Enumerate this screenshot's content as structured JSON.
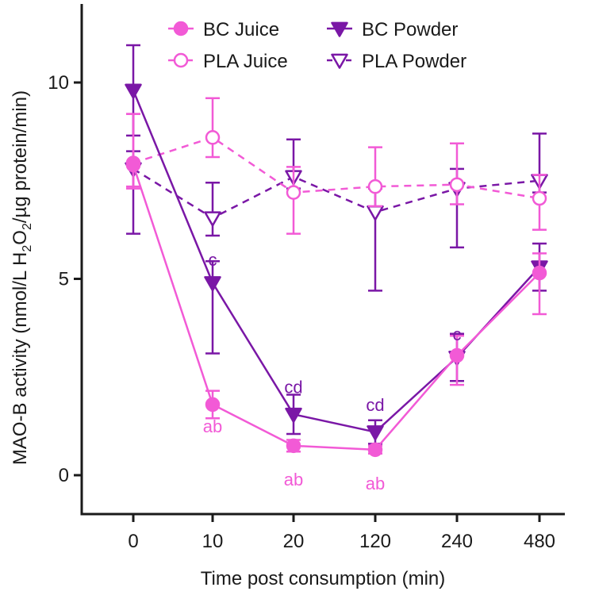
{
  "chart_data": {
    "type": "line",
    "title": "",
    "xlabel": "Time post consumption (min)",
    "ylabel_parts": {
      "pre": "MAO-B activity (nmol/L H",
      "sub": "2",
      "mid": "O",
      "sub2": "2",
      "post": "/µg protein/min)"
    },
    "categories": [
      "0",
      "10",
      "20",
      "120",
      "240",
      "480"
    ],
    "ylim": [
      -1,
      12
    ],
    "yticks": [
      0,
      5,
      10
    ],
    "ytick_labels": [
      "0",
      "5",
      "10"
    ],
    "series": [
      {
        "name": "BC Juice",
        "color": "#f25ad6",
        "dashed": false,
        "marker": "circle-filled",
        "values": [
          7.9,
          1.8,
          0.75,
          0.65,
          3.05,
          5.15
        ],
        "err_up": [
          1.3,
          0.35,
          0.15,
          0.1,
          0.5,
          0.5
        ],
        "err_down": [
          0.6,
          0.35,
          0.15,
          0.1,
          0.75,
          1.05
        ]
      },
      {
        "name": "BC Powder",
        "color": "#7a17a6",
        "dashed": false,
        "marker": "triangle-down-filled",
        "values": [
          9.8,
          4.9,
          1.55,
          1.1,
          3.0,
          5.3
        ],
        "err_up": [
          1.15,
          0.55,
          0.5,
          0.3,
          0.6,
          0.6
        ],
        "err_down": [
          1.15,
          1.8,
          0.5,
          0.3,
          0.6,
          0.6
        ]
      },
      {
        "name": "PLA Juice",
        "color": "#f25ad6",
        "dashed": true,
        "marker": "circle-open",
        "values": [
          7.95,
          8.6,
          7.2,
          7.35,
          7.4,
          7.05
        ],
        "err_up": [
          1.25,
          1.0,
          0.65,
          1.0,
          1.05,
          0.6
        ],
        "err_down": [
          0.6,
          0.5,
          1.05,
          0.5,
          0.5,
          0.8
        ]
      },
      {
        "name": "PLA Powder",
        "color": "#7a17a6",
        "dashed": true,
        "marker": "triangle-down-open",
        "values": [
          7.8,
          6.55,
          7.6,
          6.7,
          7.3,
          7.5
        ],
        "err_up": [
          0.45,
          0.9,
          0.95,
          0.6,
          0.5,
          1.2
        ],
        "err_down": [
          1.65,
          0.45,
          0.3,
          2.0,
          1.5,
          0.3
        ]
      }
    ],
    "annotations": [
      {
        "text": "c",
        "category": "10",
        "y": 5.5,
        "color": "#7a17a6"
      },
      {
        "text": "cd",
        "category": "20",
        "y": 2.25,
        "color": "#7a17a6"
      },
      {
        "text": "cd",
        "category": "120",
        "y": 1.8,
        "color": "#7a17a6"
      },
      {
        "text": "c",
        "category": "240",
        "y": 3.6,
        "color": "#7a17a6"
      },
      {
        "text": "ab",
        "category": "10",
        "y": 1.25,
        "color": "#f25ad6"
      },
      {
        "text": "ab",
        "category": "20",
        "y": -0.1,
        "color": "#f25ad6"
      },
      {
        "text": "ab",
        "category": "120",
        "y": -0.2,
        "color": "#f25ad6"
      }
    ],
    "legend_position": "top"
  }
}
